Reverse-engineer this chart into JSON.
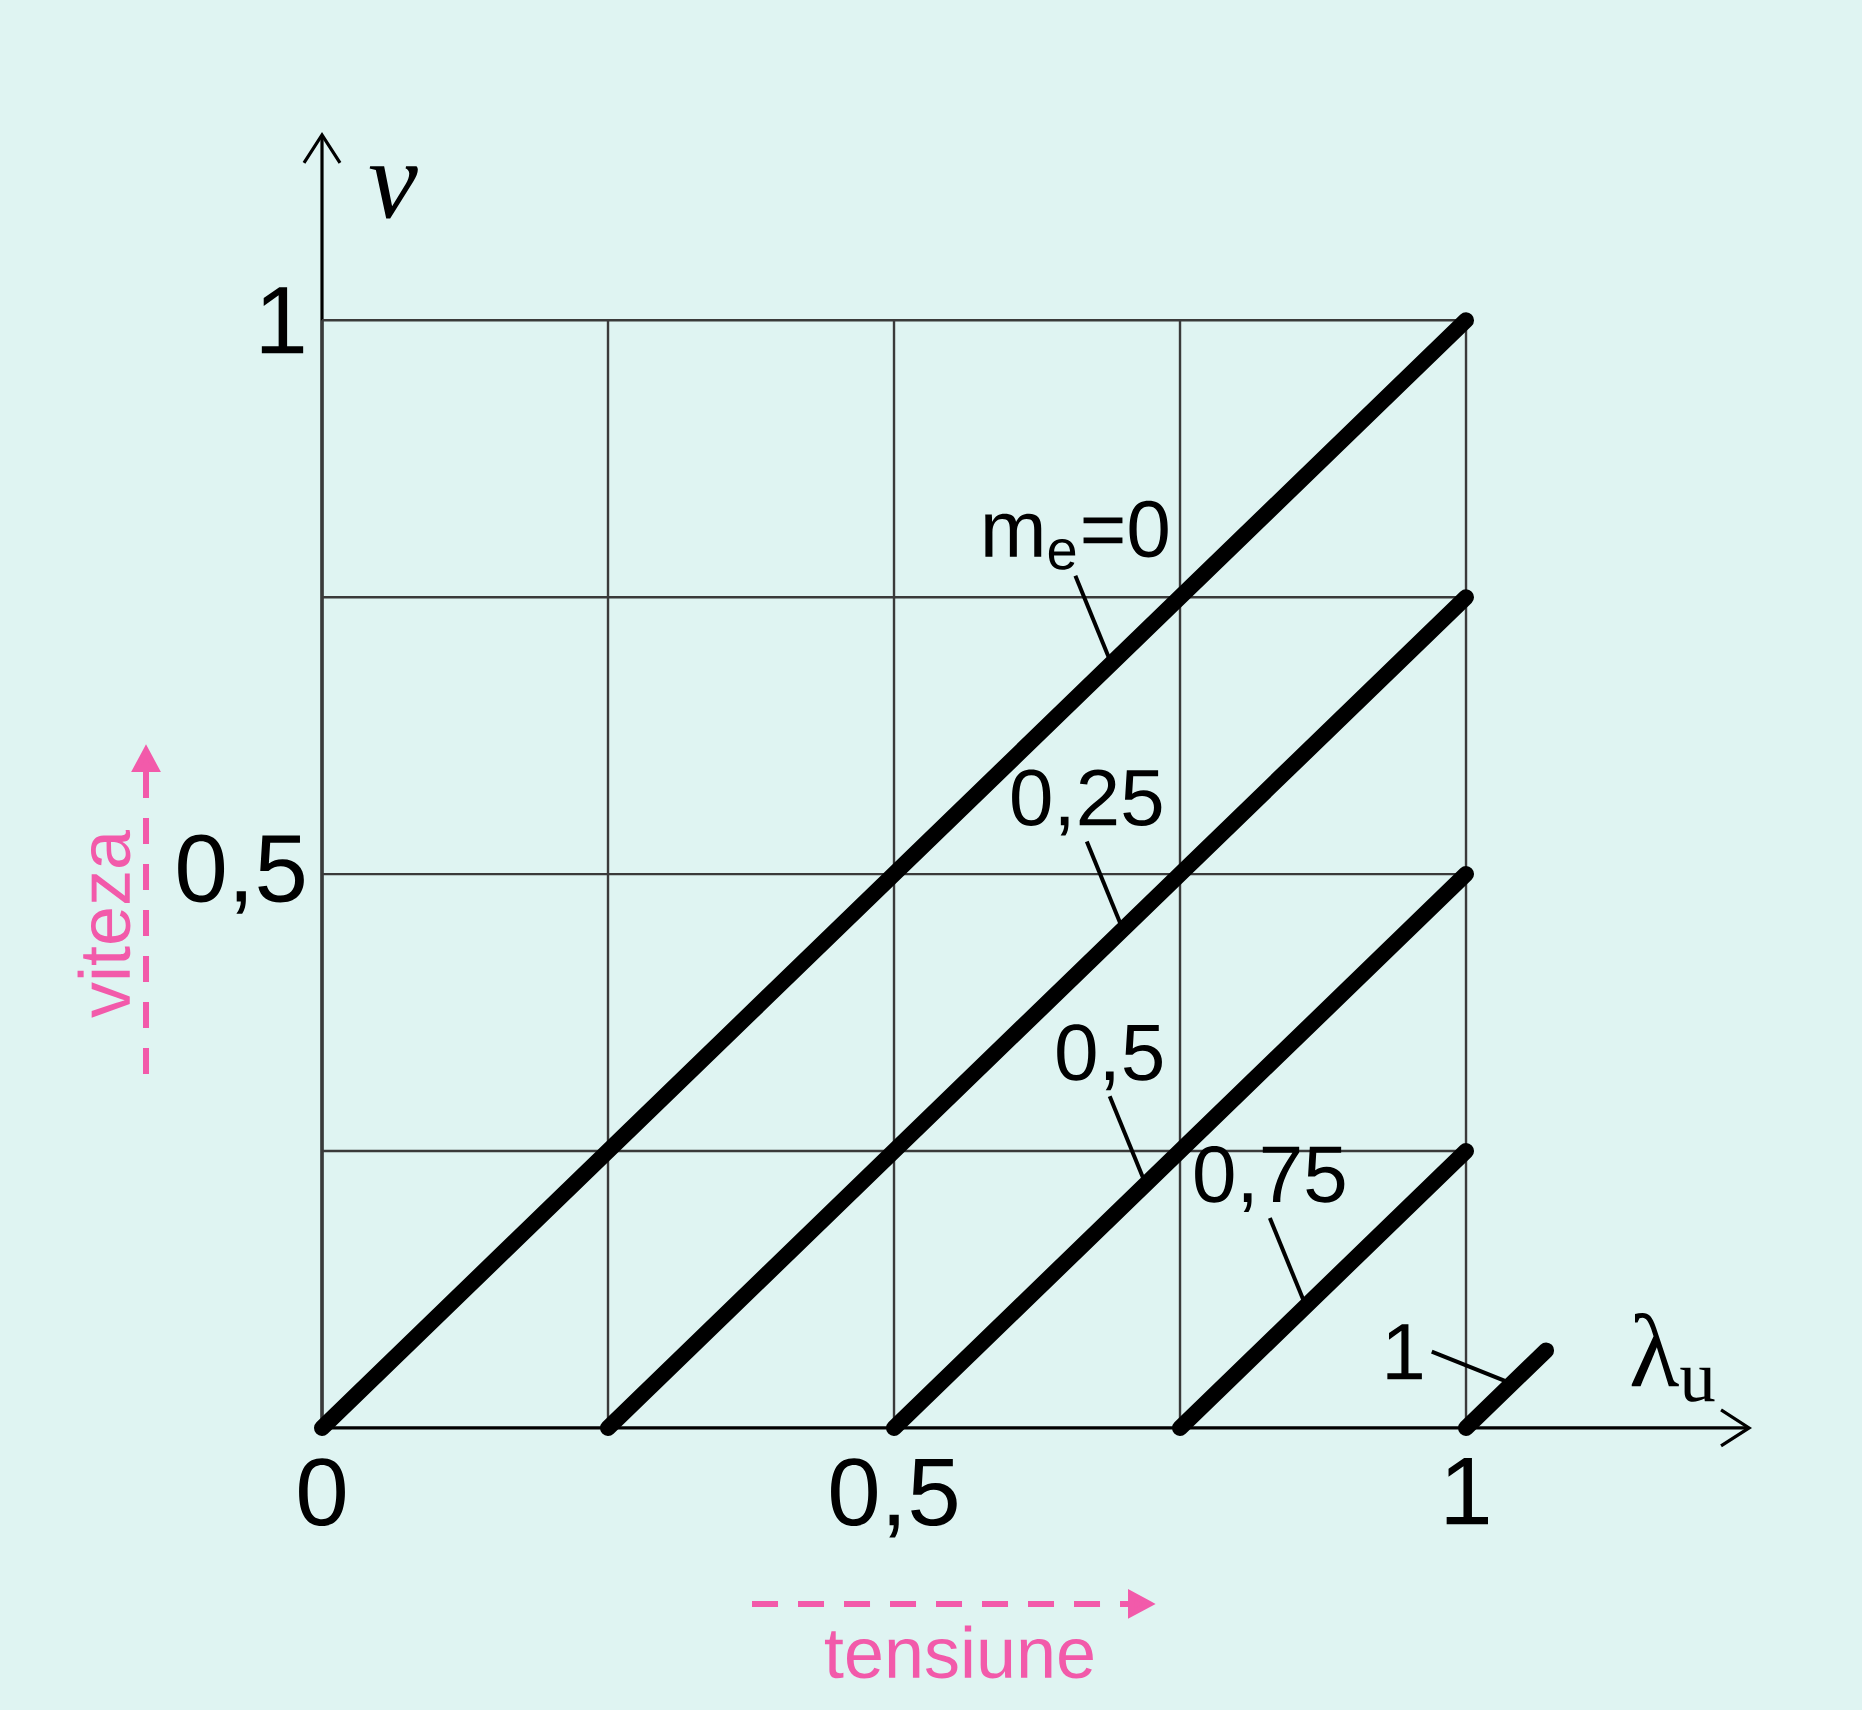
{
  "chart_data": {
    "type": "line",
    "xlabel": "λ$_{u}$",
    "ylabel": "ν",
    "series": [
      {
        "x": [
          0,
          1
        ],
        "values": [
          0,
          1
        ],
        "color": "#000000"
      },
      {
        "x": [
          0.25,
          1
        ],
        "values": [
          0,
          0.75
        ],
        "color": "#000000"
      },
      {
        "x": [
          0.5,
          1
        ],
        "values": [
          0,
          0.5
        ],
        "color": "#000000"
      },
      {
        "x": [
          0.75,
          1
        ],
        "values": [
          0,
          0.25
        ],
        "color": "#000000"
      },
      {
        "x": [
          1,
          1.07
        ],
        "values": [
          0,
          0.07
        ],
        "color": "#000000"
      }
    ],
    "xlim": [
      0,
      1.25
    ],
    "ylim": [
      0,
      1.17
    ],
    "xticks": [
      0,
      {
        "value": 0.25,
        "label": null
      },
      {
        "value": 0.5,
        "label": "0,5"
      },
      {
        "value": 0.75,
        "label": null
      },
      1
    ],
    "yticks": [
      {
        "value": 0.25,
        "label": null
      },
      {
        "value": 0.5,
        "label": "0,5"
      },
      {
        "value": 0.75,
        "label": null
      },
      1
    ],
    "grid": true,
    "annotations": [
      {
        "text": "m$_{e}$=0",
        "x": 0.69,
        "y": 0.69
      },
      {
        "text": "0,25",
        "x": 0.7,
        "y": 0.45
      },
      {
        "text": "0,5",
        "x": 0.72,
        "y": 0.22
      },
      {
        "text": "0,75",
        "x": 0.86,
        "y": 0.11
      },
      {
        "text": "1",
        "x": 1.04,
        "y": 0.04
      },
      "viteza",
      "tensiune"
    ]
  }
}
